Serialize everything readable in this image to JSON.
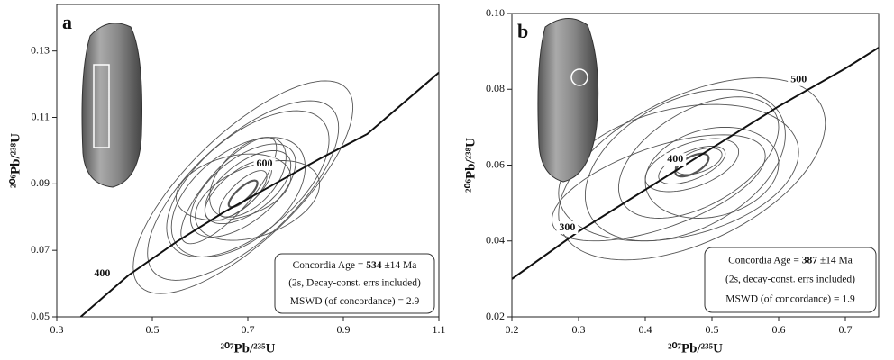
{
  "chart_data": [
    {
      "type": "concordia",
      "panel": "a",
      "x_label": "²⁰⁷Pb/²³⁵U",
      "y_label": "²⁰⁶Pb/²³⁸U",
      "xlim": [
        0.3,
        1.1
      ],
      "ylim": [
        0.05,
        0.144
      ],
      "xticks": [
        0.3,
        0.5,
        0.7,
        0.9,
        1.1
      ],
      "yticks": [
        0.05,
        0.07,
        0.09,
        0.11,
        0.13
      ],
      "concordia": {
        "x": [
          0.35,
          0.45,
          0.55,
          0.65,
          0.75,
          0.85,
          0.95,
          1.1
        ],
        "y": [
          0.05,
          0.0625,
          0.0725,
          0.0815,
          0.0895,
          0.0975,
          0.105,
          0.1235
        ]
      },
      "age_labels": [
        {
          "age": 400,
          "x": 0.395,
          "y": 0.063
        },
        {
          "age": 600,
          "x": 0.735,
          "y": 0.096
        }
      ],
      "ellipses": [
        {
          "cx": 0.69,
          "cy": 0.089,
          "sx": 0.23,
          "sy": 0.032,
          "rho": 0.75
        },
        {
          "cx": 0.69,
          "cy": 0.088,
          "sx": 0.2,
          "sy": 0.027,
          "rho": 0.7
        },
        {
          "cx": 0.7,
          "cy": 0.09,
          "sx": 0.17,
          "sy": 0.022,
          "rho": 0.6
        },
        {
          "cx": 0.68,
          "cy": 0.086,
          "sx": 0.14,
          "sy": 0.018,
          "rho": 0.5
        },
        {
          "cx": 0.69,
          "cy": 0.088,
          "sx": 0.11,
          "sy": 0.014,
          "rho": 0.6
        },
        {
          "cx": 0.7,
          "cy": 0.089,
          "sx": 0.09,
          "sy": 0.011,
          "rho": 0.6
        },
        {
          "cx": 0.68,
          "cy": 0.088,
          "sx": 0.07,
          "sy": 0.009,
          "rho": 0.7
        },
        {
          "cx": 0.69,
          "cy": 0.087,
          "sx": 0.05,
          "sy": 0.007,
          "rho": 0.75
        },
        {
          "cx": 0.67,
          "cy": 0.089,
          "sx": 0.12,
          "sy": 0.01,
          "rho": 0.3
        },
        {
          "cx": 0.72,
          "cy": 0.085,
          "sx": 0.13,
          "sy": 0.012,
          "rho": 0.4
        },
        {
          "cx": 0.7,
          "cy": 0.092,
          "sx": 0.08,
          "sy": 0.012,
          "rho": 0.5
        },
        {
          "cx": 0.66,
          "cy": 0.088,
          "sx": 0.1,
          "sy": 0.016,
          "rho": 0.8
        }
      ],
      "concordia_ellipse": {
        "cx": 0.69,
        "cy": 0.087,
        "sx": 0.03,
        "sy": 0.004,
        "rho": 0.8
      },
      "result": {
        "label": "Concordia Age =",
        "age": 534,
        "error": "±14 Ma",
        "note": "(2s, Decay-const. errs included)",
        "mswd_label": "MSWD (of concordance) =",
        "mswd": 2.9
      }
    },
    {
      "type": "concordia",
      "panel": "b",
      "x_label": "²⁰⁷Pb/²³⁵U",
      "y_label": "²⁰⁶Pb/²³⁸U",
      "xlim": [
        0.2,
        0.75
      ],
      "ylim": [
        0.02,
        0.1
      ],
      "xticks": [
        0.2,
        0.3,
        0.4,
        0.5,
        0.6,
        0.7
      ],
      "yticks": [
        0.02,
        0.04,
        0.06,
        0.08,
        {
          "value": 0.1,
          "label": "0.10"
        }
      ],
      "concordia": {
        "x": [
          0.2,
          0.3,
          0.4,
          0.5,
          0.6,
          0.7,
          0.75
        ],
        "y": [
          0.03,
          0.0425,
          0.0535,
          0.0645,
          0.0755,
          0.0855,
          0.091
        ]
      },
      "age_labels": [
        {
          "age": 300,
          "x": 0.283,
          "y": 0.0435
        },
        {
          "age": 400,
          "x": 0.445,
          "y": 0.0615
        },
        {
          "age": 500,
          "x": 0.63,
          "y": 0.0825
        }
      ],
      "ellipses": [
        {
          "cx": 0.47,
          "cy": 0.059,
          "sx": 0.2,
          "sy": 0.024,
          "rho": 0.5
        },
        {
          "cx": 0.45,
          "cy": 0.058,
          "sx": 0.18,
          "sy": 0.018,
          "rho": 0.3
        },
        {
          "cx": 0.46,
          "cy": 0.06,
          "sx": 0.15,
          "sy": 0.02,
          "rho": 0.4
        },
        {
          "cx": 0.48,
          "cy": 0.062,
          "sx": 0.12,
          "sy": 0.016,
          "rho": 0.5
        },
        {
          "cx": 0.42,
          "cy": 0.054,
          "sx": 0.16,
          "sy": 0.014,
          "rho": 0.6
        },
        {
          "cx": 0.47,
          "cy": 0.06,
          "sx": 0.05,
          "sy": 0.005,
          "rho": 0.6
        },
        {
          "cx": 0.47,
          "cy": 0.06,
          "sx": 0.07,
          "sy": 0.007,
          "rho": 0.5
        },
        {
          "cx": 0.48,
          "cy": 0.061,
          "sx": 0.035,
          "sy": 0.0035,
          "rho": 0.5
        },
        {
          "cx": 0.5,
          "cy": 0.058,
          "sx": 0.1,
          "sy": 0.012,
          "rho": 0.2
        }
      ],
      "concordia_ellipse": {
        "cx": 0.47,
        "cy": 0.06,
        "sx": 0.025,
        "sy": 0.003,
        "rho": 0.6
      },
      "result": {
        "label": "Concordia Age =",
        "age": 387,
        "error": "±14 Ma",
        "note": "(2s, decay-const. errs included)",
        "mswd_label": "MSWD (of concordance) =",
        "mswd": 1.9
      }
    }
  ]
}
